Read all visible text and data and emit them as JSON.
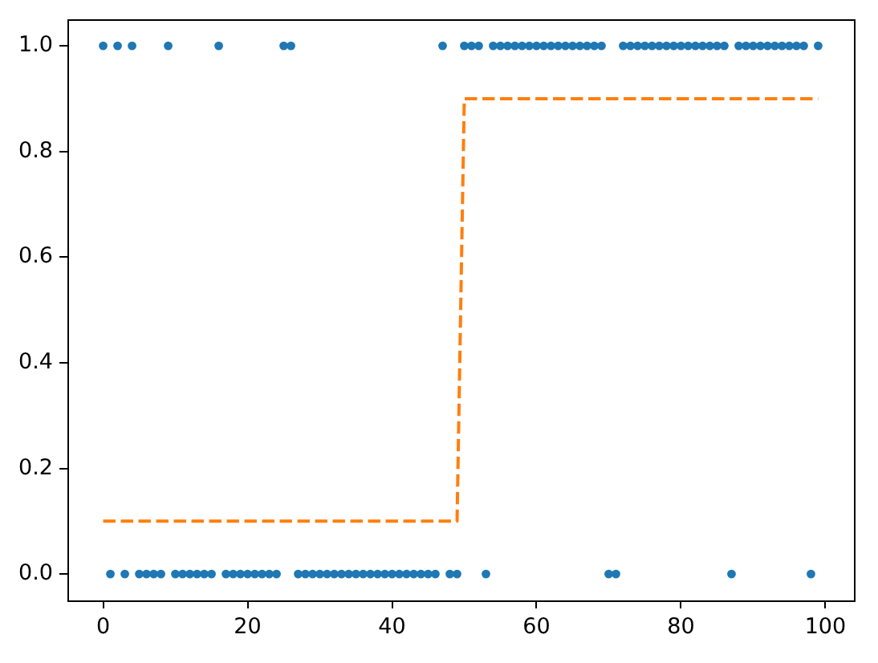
{
  "chart_data": {
    "type": "scatter",
    "xlim": [
      -4.95,
      103.95
    ],
    "ylim": [
      -0.05,
      1.05
    ],
    "xticks": [
      0,
      20,
      40,
      60,
      80,
      100
    ],
    "yticks": [
      {
        "value": 0,
        "label": "0.0"
      },
      {
        "value": 0.2,
        "label": "0.2"
      },
      {
        "value": 0.4,
        "label": "0.4"
      },
      {
        "value": 0.6,
        "label": "0.6"
      },
      {
        "value": 0.8,
        "label": "0.8"
      },
      {
        "value": 1,
        "label": "1.0"
      }
    ],
    "grid": false,
    "legend": false,
    "series": [
      {
        "color": "#1f77b4",
        "marker": "circle",
        "x": [
          0,
          1,
          2,
          3,
          4,
          5,
          6,
          7,
          8,
          9,
          10,
          11,
          12,
          13,
          14,
          15,
          16,
          17,
          18,
          19,
          20,
          21,
          22,
          23,
          24,
          25,
          26,
          27,
          28,
          29,
          30,
          31,
          32,
          33,
          34,
          35,
          36,
          37,
          38,
          39,
          40,
          41,
          42,
          43,
          44,
          45,
          46,
          47,
          48,
          49,
          50,
          51,
          52,
          53,
          54,
          55,
          56,
          57,
          58,
          59,
          60,
          61,
          62,
          63,
          64,
          65,
          66,
          67,
          68,
          69,
          70,
          71,
          72,
          73,
          74,
          75,
          76,
          77,
          78,
          79,
          80,
          81,
          82,
          83,
          84,
          85,
          86,
          87,
          88,
          89,
          90,
          91,
          92,
          93,
          94,
          95,
          96,
          97,
          98,
          99
        ],
        "values": [
          1,
          0,
          1,
          0,
          1,
          0,
          0,
          0,
          0,
          1,
          0,
          0,
          0,
          0,
          0,
          0,
          1,
          0,
          0,
          0,
          0,
          0,
          0,
          0,
          0,
          1,
          1,
          0,
          0,
          0,
          0,
          0,
          0,
          0,
          0,
          0,
          0,
          0,
          0,
          0,
          0,
          0,
          0,
          0,
          0,
          0,
          0,
          1,
          0,
          0,
          1,
          1,
          1,
          0,
          1,
          1,
          1,
          1,
          1,
          1,
          1,
          1,
          1,
          1,
          1,
          1,
          1,
          1,
          1,
          1,
          0,
          0,
          1,
          1,
          1,
          1,
          1,
          1,
          1,
          1,
          1,
          1,
          1,
          1,
          1,
          1,
          1,
          0,
          1,
          1,
          1,
          1,
          1,
          1,
          1,
          1,
          1,
          1,
          0,
          1
        ]
      },
      {
        "type": "line",
        "color": "#ff7f0e",
        "line_style": "dashed",
        "marker": "none",
        "x": [
          0,
          1,
          2,
          3,
          4,
          5,
          6,
          7,
          8,
          9,
          10,
          11,
          12,
          13,
          14,
          15,
          16,
          17,
          18,
          19,
          20,
          21,
          22,
          23,
          24,
          25,
          26,
          27,
          28,
          29,
          30,
          31,
          32,
          33,
          34,
          35,
          36,
          37,
          38,
          39,
          40,
          41,
          42,
          43,
          44,
          45,
          46,
          47,
          48,
          49,
          50,
          51,
          52,
          53,
          54,
          55,
          56,
          57,
          58,
          59,
          60,
          61,
          62,
          63,
          64,
          65,
          66,
          67,
          68,
          69,
          70,
          71,
          72,
          73,
          74,
          75,
          76,
          77,
          78,
          79,
          80,
          81,
          82,
          83,
          84,
          85,
          86,
          87,
          88,
          89,
          90,
          91,
          92,
          93,
          94,
          95,
          96,
          97,
          98,
          99
        ],
        "values": [
          0.1,
          0.1,
          0.1,
          0.1,
          0.1,
          0.1,
          0.1,
          0.1,
          0.1,
          0.1,
          0.1,
          0.1,
          0.1,
          0.1,
          0.1,
          0.1,
          0.1,
          0.1,
          0.1,
          0.1,
          0.1,
          0.1,
          0.1,
          0.1,
          0.1,
          0.1,
          0.1,
          0.1,
          0.1,
          0.1,
          0.1,
          0.1,
          0.1,
          0.1,
          0.1,
          0.1,
          0.1,
          0.1,
          0.1,
          0.1,
          0.1,
          0.1,
          0.1,
          0.1,
          0.1,
          0.1,
          0.1,
          0.1,
          0.1,
          0.1,
          0.9,
          0.9,
          0.9,
          0.9,
          0.9,
          0.9,
          0.9,
          0.9,
          0.9,
          0.9,
          0.9,
          0.9,
          0.9,
          0.9,
          0.9,
          0.9,
          0.9,
          0.9,
          0.9,
          0.9,
          0.9,
          0.9,
          0.9,
          0.9,
          0.9,
          0.9,
          0.9,
          0.9,
          0.9,
          0.9,
          0.9,
          0.9,
          0.9,
          0.9,
          0.9,
          0.9,
          0.9,
          0.9,
          0.9,
          0.9,
          0.9,
          0.9,
          0.9,
          0.9,
          0.9,
          0.9,
          0.9,
          0.9,
          0.9,
          0.9
        ]
      }
    ]
  }
}
